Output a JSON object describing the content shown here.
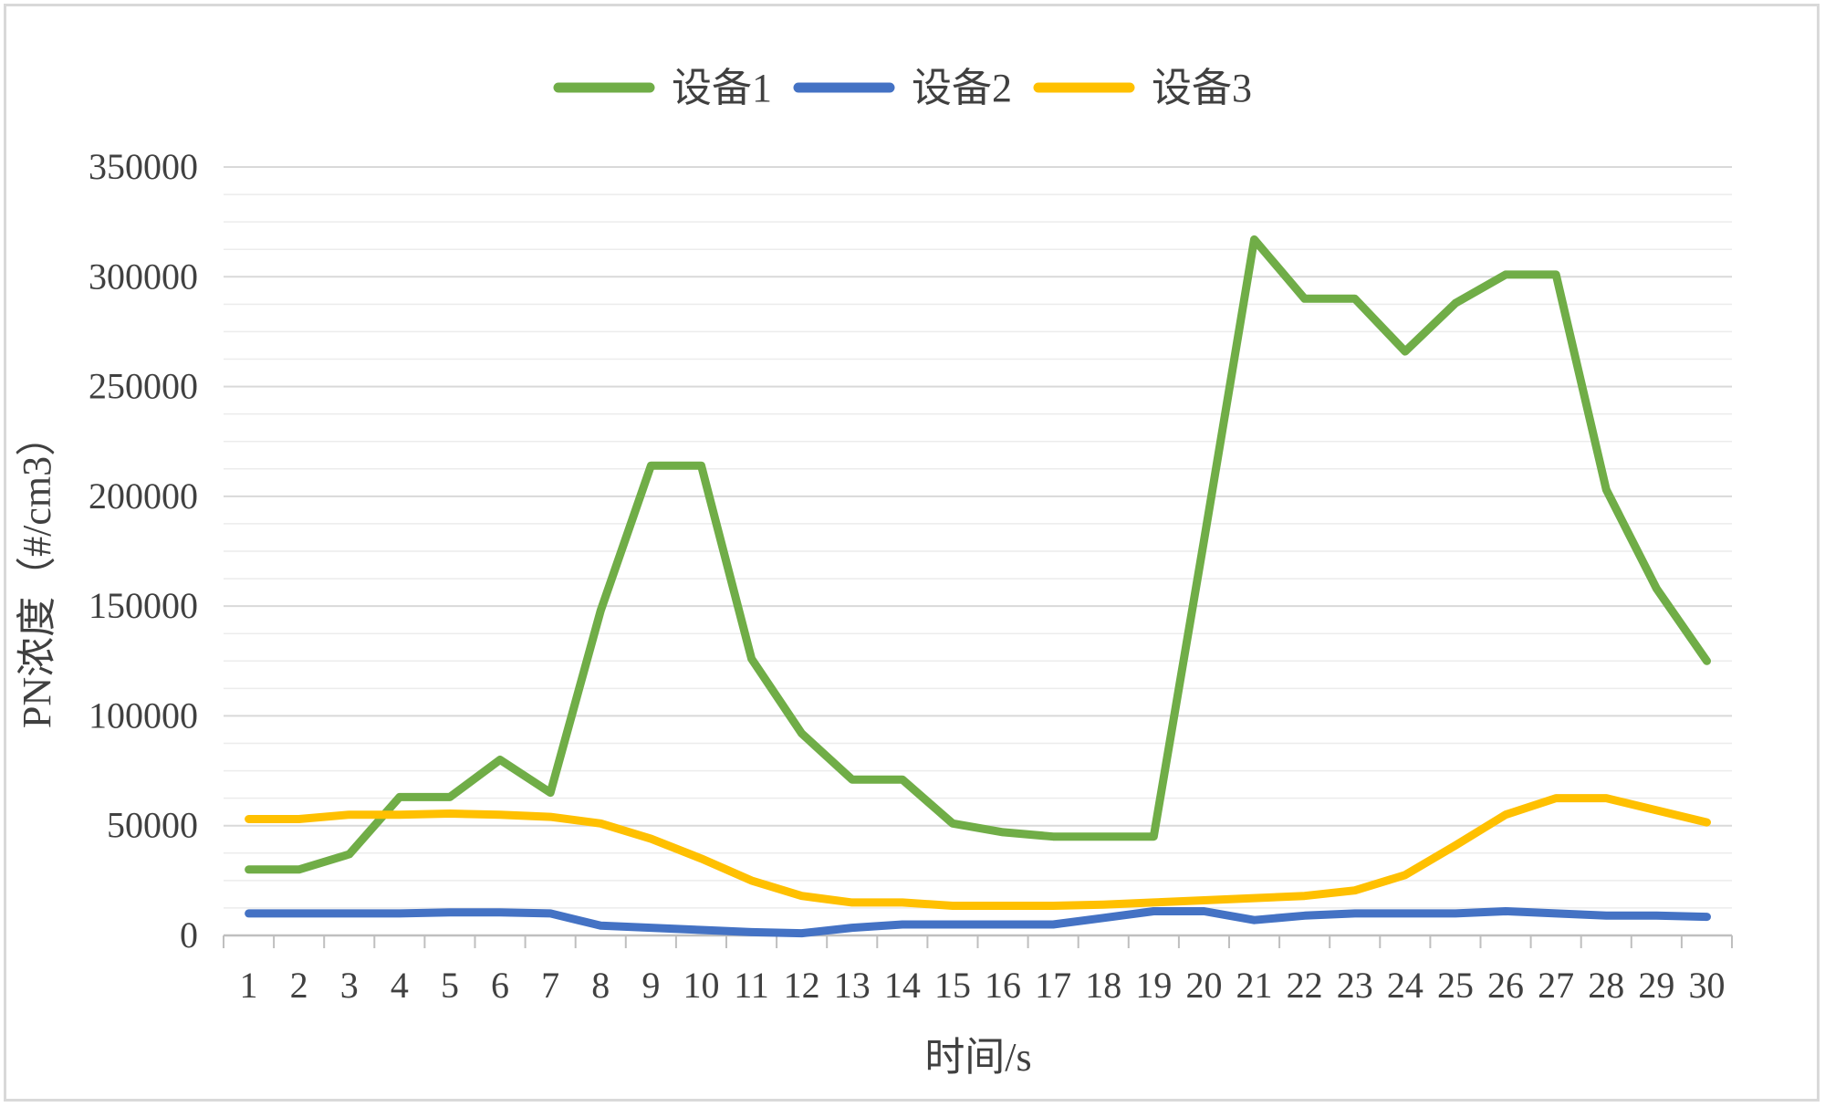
{
  "chart_data": {
    "type": "line",
    "xlabel": "时间/s",
    "ylabel": "PN浓度（#/cm3）",
    "ylim": [
      0,
      350000
    ],
    "y_ticks": [
      0,
      50000,
      100000,
      150000,
      200000,
      250000,
      300000,
      350000
    ],
    "x": [
      1,
      2,
      3,
      4,
      5,
      6,
      7,
      8,
      9,
      10,
      11,
      12,
      13,
      14,
      15,
      16,
      17,
      18,
      19,
      20,
      21,
      22,
      23,
      24,
      25,
      26,
      27,
      28,
      29,
      30
    ],
    "grid": "horizontal major and minor",
    "legend": "top",
    "series": [
      {
        "name": "设备1",
        "color": "#70AD47",
        "values": [
          30000,
          30000,
          37000,
          63000,
          63000,
          80000,
          65000,
          148000,
          214000,
          214000,
          126000,
          92000,
          71000,
          71000,
          51000,
          47000,
          45000,
          45000,
          45000,
          180000,
          317000,
          290000,
          290000,
          266000,
          288000,
          301000,
          301000,
          203000,
          158000,
          125000
        ]
      },
      {
        "name": "设备2",
        "color": "#4472C4",
        "values": [
          10000,
          10000,
          10000,
          10000,
          10500,
          10500,
          10000,
          4500,
          3500,
          2500,
          1500,
          1000,
          3500,
          5000,
          5000,
          5000,
          5000,
          8000,
          11000,
          11000,
          7000,
          9000,
          10000,
          10000,
          10000,
          11000,
          10000,
          9000,
          9000,
          8500
        ]
      },
      {
        "name": "设备3",
        "color": "#FFC000",
        "values": [
          53000,
          53000,
          55000,
          55000,
          55500,
          55000,
          54000,
          51000,
          44000,
          35000,
          25000,
          18000,
          15000,
          15000,
          13500,
          13500,
          13500,
          14000,
          15000,
          16000,
          17000,
          18000,
          20500,
          27500,
          41000,
          55000,
          62500,
          62500,
          57000,
          51500
        ]
      }
    ]
  }
}
